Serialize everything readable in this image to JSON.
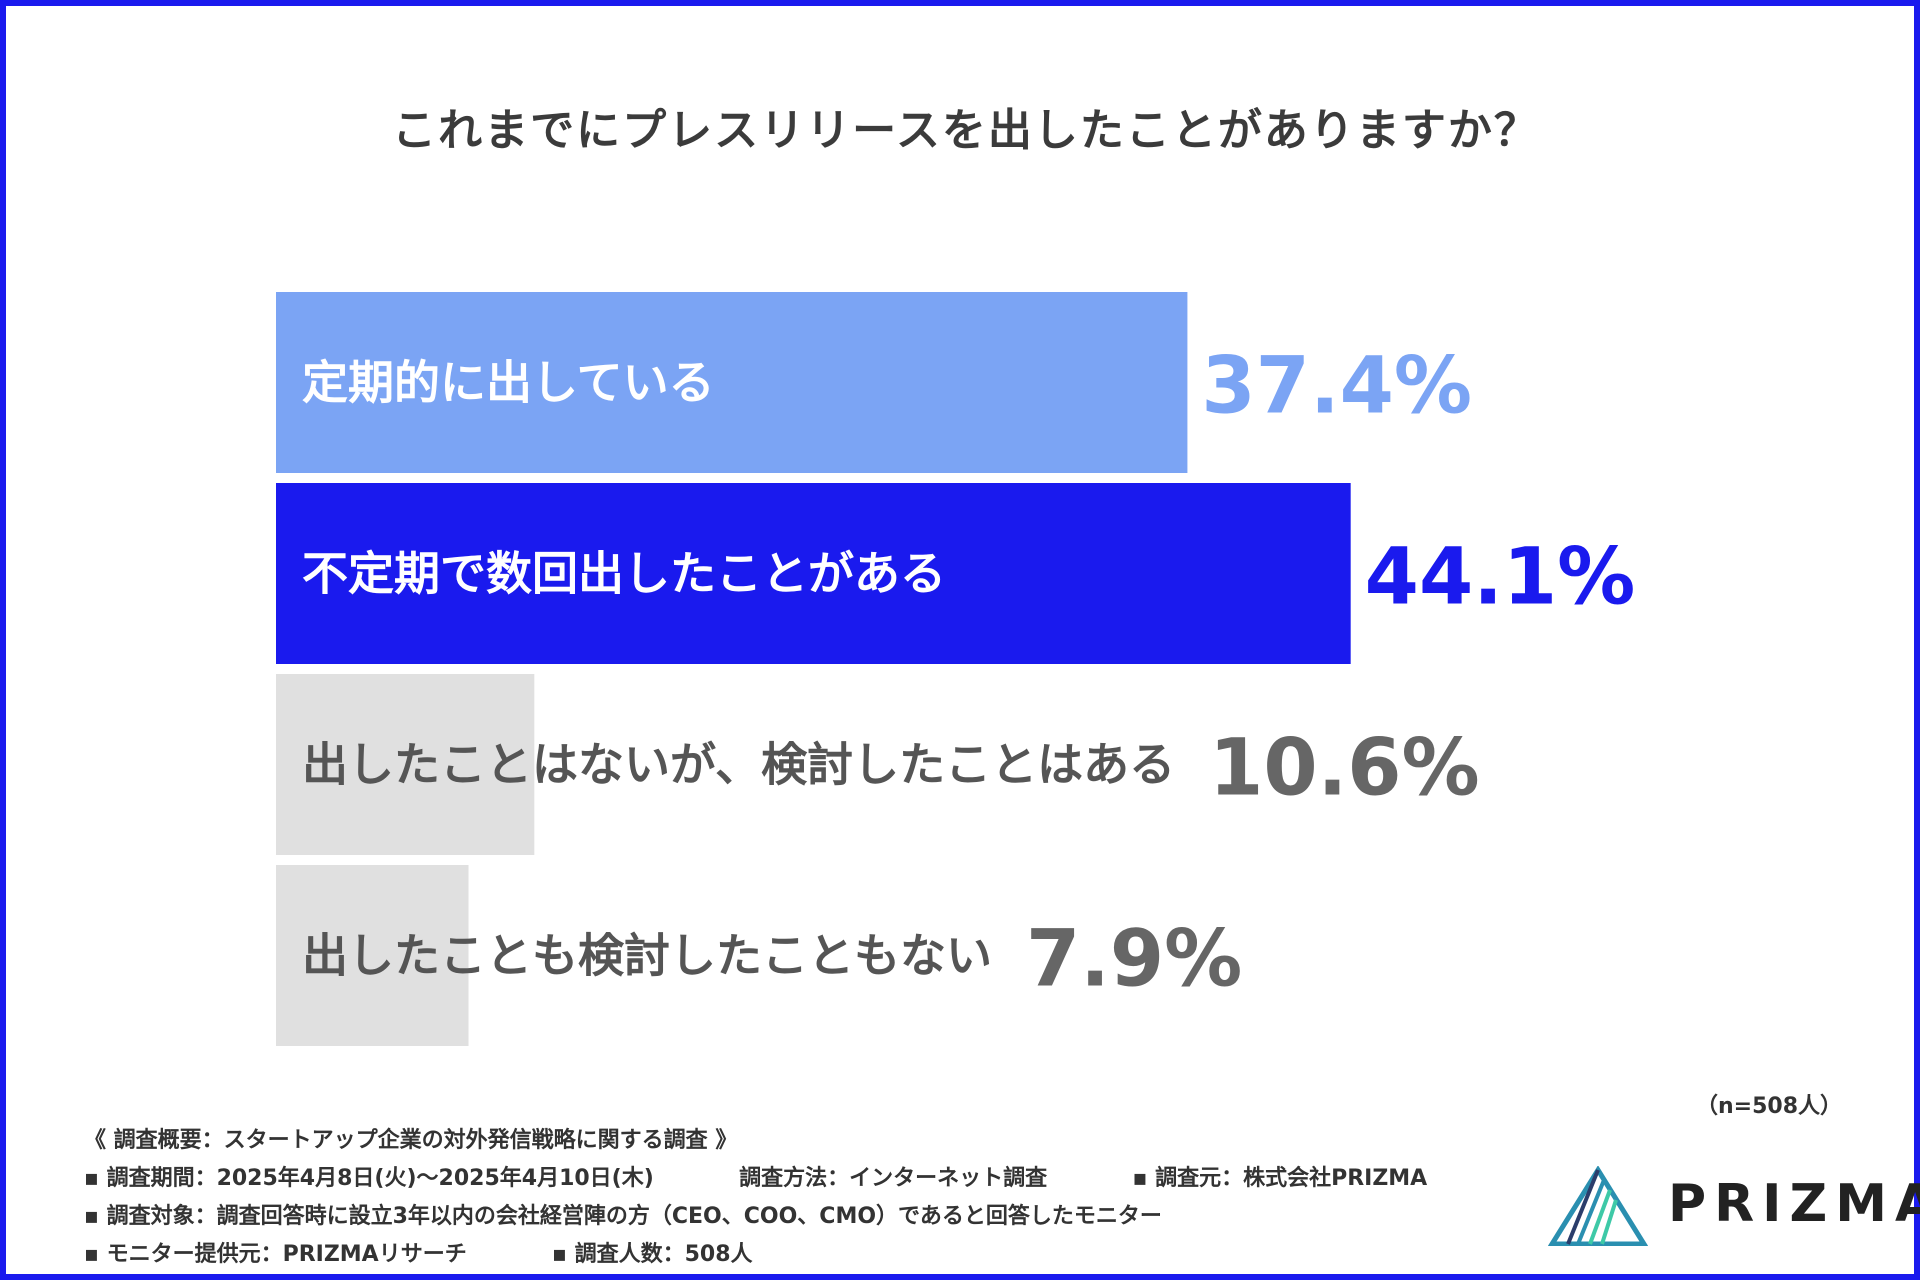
{
  "chart_data": {
    "type": "bar",
    "orientation": "horizontal",
    "title": "これまでにプレスリリースを出したことがありますか？",
    "categories": [
      "定期的に出している",
      "不定期で数回出したことがある",
      "出したことはないが、検討したことはある",
      "出したことも検討したこともない"
    ],
    "values": [
      37.4,
      44.1,
      10.6,
      7.9
    ],
    "value_labels": [
      "37.4%",
      "44.1%",
      "10.6%",
      "7.9%"
    ],
    "bar_colors": [
      "#7ba4f4",
      "#1a1aee",
      "#e0e0e0",
      "#e0e0e0"
    ],
    "label_colors": [
      "#ffffff",
      "#ffffff",
      "#555555",
      "#555555"
    ],
    "value_colors": [
      "#7ba4f4",
      "#1a1aee",
      "#666666",
      "#666666"
    ],
    "xlim": [
      0,
      54.7
    ],
    "grid": false,
    "legend": "none"
  },
  "note_n": "（n=508人）",
  "notes": {
    "summary": "《 調査概要：スタートアップ企業の対外発信戦略に関する調査 》",
    "period": "▪ 調査期間：2025年4月8日(火)〜2025年4月10日(木)",
    "method": "調査方法：インターネット調査",
    "source": "▪ 調査元：株式会社PRIZMA",
    "target": "▪ 調査対象：調査回答時に設立3年以内の会社経営陣の方（CEO、COO、CMO）であると回答したモニター",
    "provider": "▪ モニター提供元：PRIZMAリサーチ",
    "count": "▪ 調査人数：508人"
  },
  "logo": {
    "text": "PRIZMA",
    "colors": [
      "#2b3d6b",
      "#2a8fb0",
      "#3ec9a7"
    ]
  }
}
